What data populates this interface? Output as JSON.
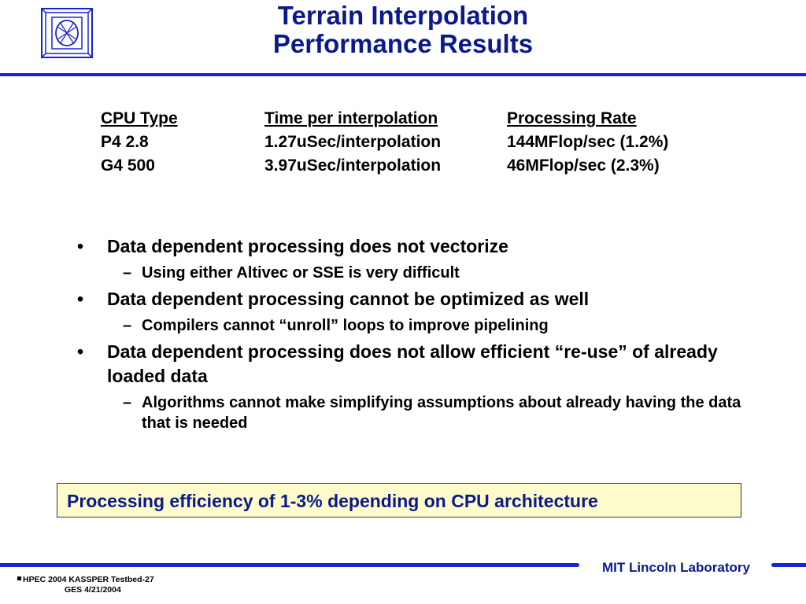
{
  "header": {
    "title_line1": "Terrain Interpolation",
    "title_line2": "Performance Results",
    "logo_icon": "mit-ll-logo-icon"
  },
  "table": {
    "columns": [
      "CPU Type",
      "Time per interpolation",
      "Processing Rate"
    ],
    "rows": [
      [
        "P4 2.8",
        "1.27uSec/interpolation",
        "144MFlop/sec (1.2%)"
      ],
      [
        "G4 500",
        "3.97uSec/interpolation",
        "46MFlop/sec (2.3%)"
      ]
    ]
  },
  "bullets": [
    {
      "text": "Data dependent processing does not vectorize",
      "sub": [
        "Using either Altivec or SSE is very difficult"
      ]
    },
    {
      "text": "Data dependent processing cannot be optimized as well",
      "sub": [
        "Compilers cannot “unroll” loops to improve pipelining"
      ]
    },
    {
      "text": "Data dependent processing does not allow efficient “re-use” of already loaded data",
      "sub": [
        "Algorithms cannot make simplifying assumptions about already having the data that is needed"
      ]
    }
  ],
  "bullet_mark": "•",
  "sub_mark": "–",
  "callout": "Processing efficiency of 1-3% depending on CPU architecture",
  "footer": {
    "lab": "MIT Lincoln Laboratory",
    "line1": "HPEC 2004 KASSPER Testbed-27",
    "line2": "GES 4/21/2004"
  },
  "colors": {
    "title": "#0a1a8c",
    "rule": "#1a22d8",
    "callout_bg": "#fffccc"
  }
}
